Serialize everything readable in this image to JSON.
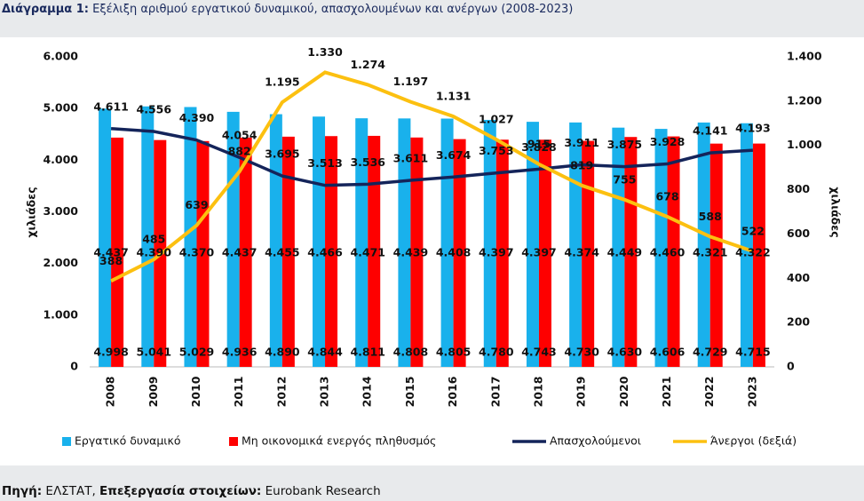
{
  "chart_data": {
    "type": "bar",
    "title_label": "Διάγραμμα 1:",
    "title": "Εξέλιξη αριθμού εργατικού δυναμικού, απασχολουμένων και ανέργων (2008-2023)",
    "ylabel": "χιλιάδες",
    "y2label": "χιλιάδες",
    "categories": [
      "2008",
      "2009",
      "2010",
      "2011",
      "2012",
      "2013",
      "2014",
      "2015",
      "2016",
      "2017",
      "2018",
      "2019",
      "2020",
      "2021",
      "2022",
      "2023"
    ],
    "ylim": [
      0,
      6000
    ],
    "yticks": [
      0,
      {
        "value": 1000,
        "label": "1.000"
      },
      {
        "value": 2000,
        "label": "2.000"
      },
      {
        "value": 3000,
        "label": "3.000"
      },
      {
        "value": 4000,
        "label": "4.000"
      },
      {
        "value": 5000,
        "label": "5.000"
      },
      {
        "value": 6000,
        "label": "6.000"
      }
    ],
    "y2lim": [
      0,
      1400
    ],
    "y2ticks": [
      0,
      200,
      400,
      600,
      800,
      {
        "value": 1000,
        "label": "1.000"
      },
      {
        "value": 1200,
        "label": "1.200"
      },
      {
        "value": 1400,
        "label": "1.400"
      }
    ],
    "series": [
      {
        "name": "Εργατικό δυναμικό",
        "type": "bar",
        "color": "#19b1ec",
        "values": [
          4998,
          5041,
          5029,
          4936,
          4890,
          4844,
          4811,
          4808,
          4805,
          4780,
          4743,
          4730,
          4630,
          4606,
          4729,
          4715
        ],
        "value_labels": [
          "4.998",
          "5.041",
          "5.029",
          "4.936",
          "4.890",
          "4.844",
          "4.811",
          "4.808",
          "4.805",
          "4.780",
          "4.743",
          "4.730",
          "4.630",
          "4.606",
          "4.729",
          "4.715"
        ]
      },
      {
        "name": "Μη οικονομικά ενεργός πληθυσμός",
        "type": "bar",
        "color": "#fe0000",
        "values": [
          4437,
          4390,
          4370,
          4437,
          4455,
          4466,
          4471,
          4439,
          4408,
          4397,
          4397,
          4374,
          4449,
          4460,
          4321,
          4322
        ],
        "value_labels": [
          "4.437",
          "4.390",
          "4.370",
          "4.437",
          "4.455",
          "4.466",
          "4.471",
          "4.439",
          "4.408",
          "4.397",
          "4.397",
          "4.374",
          "4.449",
          "4.460",
          "4.321",
          "4.322"
        ]
      },
      {
        "name": "Απασχολούμενοι",
        "type": "line",
        "color": "#14245a",
        "values": [
          4611,
          4556,
          4390,
          4054,
          3695,
          3513,
          3536,
          3611,
          3674,
          3753,
          3828,
          3911,
          3875,
          3928,
          4141,
          4193
        ],
        "value_labels": [
          "4.611",
          "4.556",
          "4.390",
          "4.054",
          "3.695",
          "3.513",
          "3.536",
          "3.611",
          "3.674",
          "3.753",
          "3.828",
          "3.911",
          "3.875",
          "3.928",
          "4.141",
          "4.193"
        ]
      },
      {
        "name": "Άνεργοι (δεξιά)",
        "type": "line",
        "axis": "y2",
        "color": "#fcc010",
        "values": [
          388,
          485,
          639,
          882,
          1195,
          1330,
          1274,
          1197,
          1131,
          1027,
          915,
          819,
          755,
          678,
          588,
          522
        ],
        "value_labels": [
          "388",
          "485",
          "639",
          "882",
          "1.195",
          "1.330",
          "1.274",
          "1.197",
          "1.131",
          "1.027",
          "915",
          "819",
          "755",
          "678",
          "588",
          "522"
        ]
      }
    ],
    "source_label": "Πηγή:",
    "source": "ΕΛΣΤΑΤ,",
    "processing_label": "Επεξεργασία στοιχείων:",
    "processing": "Eurobank Research"
  }
}
